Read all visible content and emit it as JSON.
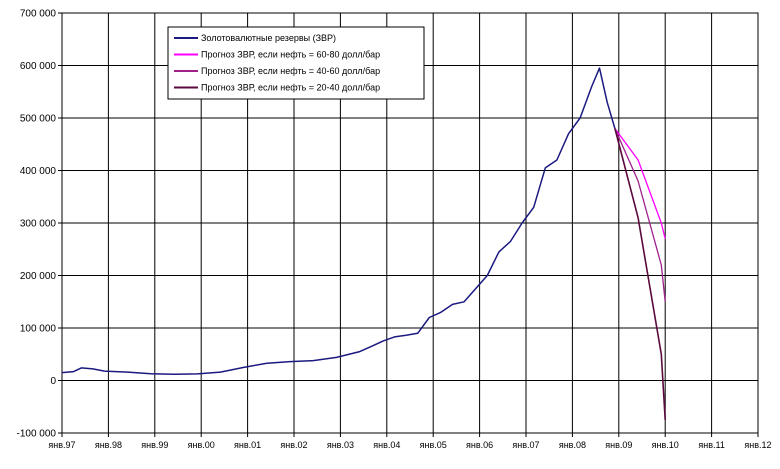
{
  "chart_data": {
    "type": "line",
    "title": "",
    "xlabel": "",
    "ylabel": "",
    "ylim": [
      -100000,
      700000
    ],
    "xlim": [
      "янв.97",
      "янв.12"
    ],
    "grid": true,
    "legend_position": "top-left",
    "y_ticks": [
      "700 000",
      "600 000",
      "500 000",
      "400 000",
      "300 000",
      "200 000",
      "100 000",
      "0",
      "-100 000"
    ],
    "x_ticks": [
      "янв.97",
      "янв.98",
      "янв.99",
      "янв.00",
      "янв.01",
      "янв.02",
      "янв.03",
      "янв.04",
      "янв.05",
      "янв.06",
      "янв.07",
      "янв.08",
      "янв.09",
      "янв.10",
      "янв.11",
      "янв.12"
    ],
    "series": [
      {
        "name": "Золотовалютные резервы (ЗВР)",
        "color": "#1a1a80",
        "points": [
          [
            "1997-01",
            15000
          ],
          [
            "1997-04",
            17000
          ],
          [
            "1997-06",
            24000
          ],
          [
            "1997-09",
            22000
          ],
          [
            "1997-12",
            18000
          ],
          [
            "1998-06",
            16000
          ],
          [
            "1998-12",
            13000
          ],
          [
            "1999-06",
            12000
          ],
          [
            "1999-12",
            12500
          ],
          [
            "2000-06",
            16000
          ],
          [
            "2000-12",
            25000
          ],
          [
            "2001-06",
            33000
          ],
          [
            "2001-12",
            36000
          ],
          [
            "2002-06",
            38000
          ],
          [
            "2002-12",
            44000
          ],
          [
            "2003-06",
            55000
          ],
          [
            "2003-09",
            65000
          ],
          [
            "2003-12",
            75000
          ],
          [
            "2004-03",
            83000
          ],
          [
            "2004-06",
            86000
          ],
          [
            "2004-09",
            90000
          ],
          [
            "2004-12",
            120000
          ],
          [
            "2005-03",
            130000
          ],
          [
            "2005-06",
            145000
          ],
          [
            "2005-09",
            150000
          ],
          [
            "2005-12",
            175000
          ],
          [
            "2006-03",
            200000
          ],
          [
            "2006-06",
            245000
          ],
          [
            "2006-09",
            265000
          ],
          [
            "2006-12",
            300000
          ],
          [
            "2007-03",
            330000
          ],
          [
            "2007-06",
            405000
          ],
          [
            "2007-09",
            420000
          ],
          [
            "2007-12",
            470000
          ],
          [
            "2008-03",
            500000
          ],
          [
            "2008-06",
            560000
          ],
          [
            "2008-08",
            595000
          ],
          [
            "2008-10",
            530000
          ],
          [
            "2008-12",
            480000
          ]
        ]
      },
      {
        "name": "Прогноз ЗВР, если нефть = 60-80 долл/бар",
        "color": "#ff00ff",
        "points": [
          [
            "2008-12",
            480000
          ],
          [
            "2009-06",
            420000
          ],
          [
            "2009-12",
            300000
          ],
          [
            "2010-01",
            270000
          ]
        ]
      },
      {
        "name": "Прогноз ЗВР, если нефть = 40-60 долл/бар",
        "color": "#a0208c",
        "points": [
          [
            "2008-12",
            480000
          ],
          [
            "2009-06",
            380000
          ],
          [
            "2009-12",
            220000
          ],
          [
            "2010-01",
            150000
          ]
        ]
      },
      {
        "name": "Прогноз ЗВР, если нефть = 20-40 долл/бар",
        "color": "#5a0a3c",
        "points": [
          [
            "2008-12",
            480000
          ],
          [
            "2009-06",
            310000
          ],
          [
            "2009-12",
            50000
          ],
          [
            "2010-01",
            -75000
          ]
        ]
      }
    ]
  }
}
